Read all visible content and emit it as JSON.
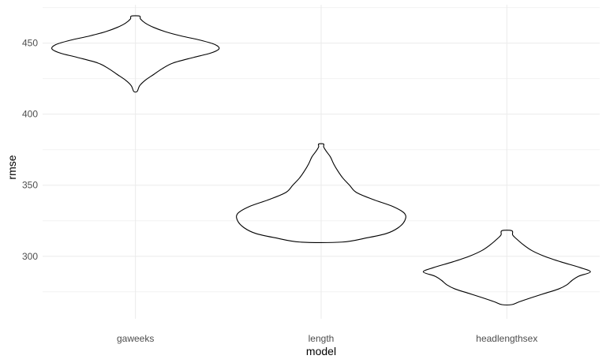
{
  "chart_data": {
    "type": "violin",
    "xlabel": "model",
    "ylabel": "rmse",
    "categories": [
      "gaweeks",
      "length",
      "headlengthsex"
    ],
    "ylim": [
      256,
      477
    ],
    "yticks": [
      300,
      350,
      400,
      450
    ],
    "grid": true,
    "legend": "none",
    "violins": [
      {
        "category": "gaweeks",
        "min": 416,
        "max": 469,
        "profile": [
          [
            416,
            0.02
          ],
          [
            420,
            0.05
          ],
          [
            424,
            0.12
          ],
          [
            428,
            0.22
          ],
          [
            432,
            0.32
          ],
          [
            436,
            0.45
          ],
          [
            440,
            0.7
          ],
          [
            443,
            0.9
          ],
          [
            446,
            1.0
          ],
          [
            449,
            0.95
          ],
          [
            452,
            0.78
          ],
          [
            455,
            0.55
          ],
          [
            458,
            0.36
          ],
          [
            461,
            0.22
          ],
          [
            464,
            0.12
          ],
          [
            467,
            0.06
          ],
          [
            469,
            0.05
          ]
        ]
      },
      {
        "category": "length",
        "min": 310,
        "max": 379,
        "profile": [
          [
            310,
            0.25
          ],
          [
            313,
            0.55
          ],
          [
            316,
            0.78
          ],
          [
            320,
            0.92
          ],
          [
            325,
            1.0
          ],
          [
            330,
            1.0
          ],
          [
            335,
            0.86
          ],
          [
            340,
            0.62
          ],
          [
            345,
            0.42
          ],
          [
            350,
            0.34
          ],
          [
            355,
            0.26
          ],
          [
            360,
            0.2
          ],
          [
            365,
            0.15
          ],
          [
            370,
            0.11
          ],
          [
            374,
            0.06
          ],
          [
            377,
            0.03
          ],
          [
            379,
            0.03
          ]
        ]
      },
      {
        "category": "headlengthsex",
        "min": 266,
        "max": 318,
        "profile": [
          [
            266,
            0.06
          ],
          [
            268,
            0.15
          ],
          [
            271,
            0.3
          ],
          [
            274,
            0.46
          ],
          [
            277,
            0.62
          ],
          [
            280,
            0.72
          ],
          [
            283,
            0.78
          ],
          [
            286,
            0.86
          ],
          [
            289,
            1.0
          ],
          [
            292,
            0.88
          ],
          [
            296,
            0.65
          ],
          [
            300,
            0.45
          ],
          [
            304,
            0.3
          ],
          [
            308,
            0.2
          ],
          [
            312,
            0.12
          ],
          [
            315,
            0.07
          ],
          [
            318,
            0.06
          ]
        ]
      }
    ]
  }
}
